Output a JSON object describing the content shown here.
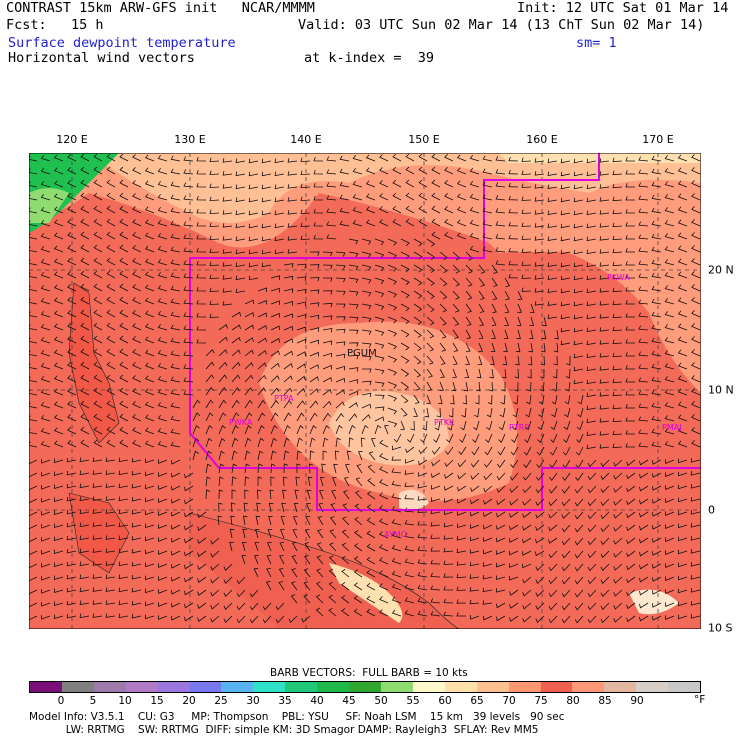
{
  "header": {
    "title": "CONTRAST 15km ARW-GFS init   NCAR/MMMM",
    "fcst": "Fcst:   15 h",
    "init": "Init: 12 UTC Sat 01 Mar 14",
    "valid": "Valid: 03 UTC Sun 02 Mar 14 (13 ChT Sun 02 Mar 14)",
    "field1": "Surface dewpoint temperature",
    "sm": "sm= 1",
    "field2": "Horizontal wind vectors",
    "kindex": "at k-index =  39"
  },
  "map": {
    "lon_labels": [
      "120 E",
      "130 E",
      "140 E",
      "150 E",
      "160 E",
      "170 E"
    ],
    "lat_labels": [
      "20 N",
      "10 N",
      "0",
      "10 S"
    ],
    "station_labels": [
      "PGUM",
      "PTPA",
      "PTKK",
      "PTRP",
      "PMAJ",
      "PKWA",
      "PWKA",
      "AYMO"
    ],
    "colors": {
      "boundary": "#e000e0",
      "grid": "#444444"
    }
  },
  "legend": {
    "title": "BARB VECTORS:  FULL BARB = 10 kts",
    "ticks": [
      "0",
      "5",
      "10",
      "15",
      "20",
      "25",
      "30",
      "35",
      "40",
      "45",
      "50",
      "55",
      "60",
      "65",
      "70",
      "75",
      "80",
      "85",
      "90"
    ],
    "unit": "°F",
    "colors": [
      "#7a0f7a",
      "#808080",
      "#9e7aaa",
      "#b07ac6",
      "#9a78e0",
      "#7878f0",
      "#58b4f0",
      "#30e0c8",
      "#20c878",
      "#20b848",
      "#30a830",
      "#8edc70",
      "#fff8cc",
      "#ffe0a8",
      "#ffc090",
      "#ff9870",
      "#f06050",
      "#ff9878",
      "#e4b8a0",
      "#d8d0c8",
      "#c8c8c8"
    ]
  },
  "footer": {
    "line1": "Model Info: V3.5.1    CU: G3     MP: Thompson    PBL: YSU     SF: Noah LSM    15 km   39 levels   90 sec",
    "line2": "           LW: RRTMG    SW: RRTMG  DIFF: simple KM: 3D Smagor DAMP: Rayleigh3  SFLAY: Rev MM5"
  }
}
